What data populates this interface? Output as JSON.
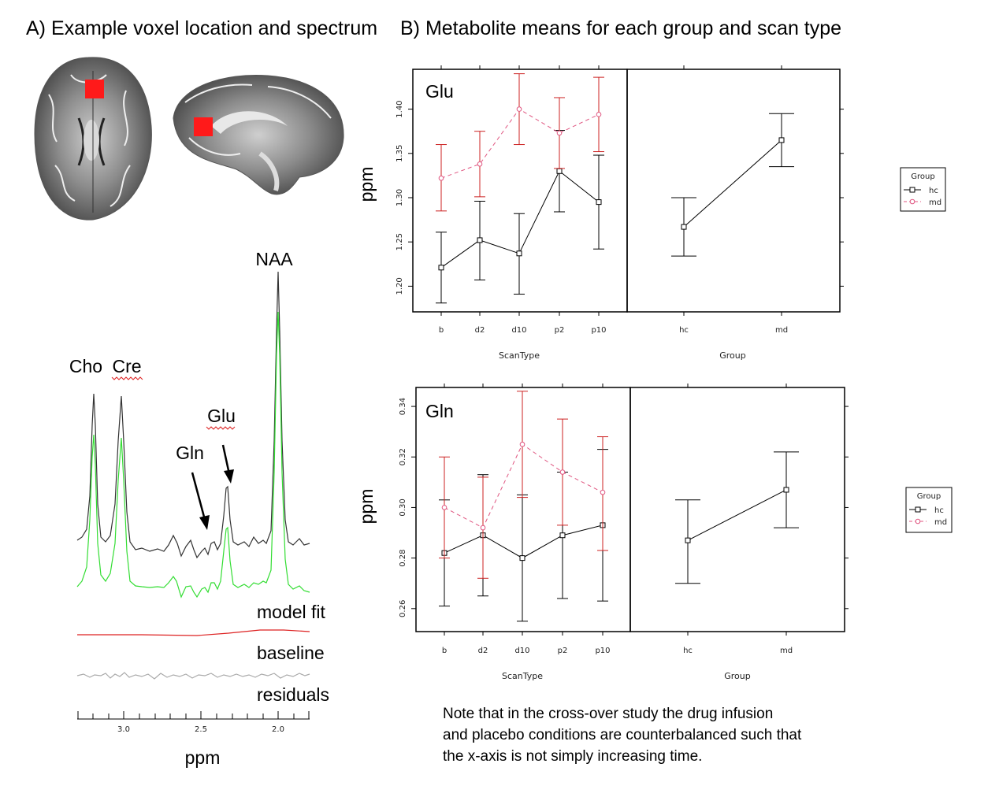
{
  "panel_a": {
    "title": "A) Example voxel location and spectrum",
    "peak_labels": {
      "naa": "NAA",
      "cho": "Cho",
      "cre": "Cre",
      "glu": "Glu",
      "gln": "Gln"
    },
    "trace_labels": {
      "model_fit": "model fit",
      "baseline": "baseline",
      "residuals": "residuals"
    },
    "xaxis": {
      "ticks": [
        "3.0",
        "2.5",
        "2.0"
      ],
      "label": "ppm"
    },
    "colors": {
      "data": "#333333",
      "fit": "#33dd33",
      "baseline": "#dd2222",
      "residuals": "#aaaaaa",
      "voxel": "#ff1a1a"
    }
  },
  "panel_b": {
    "title": "B) Metabolite means for each group and scan type",
    "note": [
      "Note that in the cross-over study the drug infusion",
      "and placebo conditions are counterbalanced such that",
      "the x-axis is not simply increasing time."
    ]
  },
  "chart_data": [
    {
      "type": "line",
      "title": "Glu",
      "xlabel": "ScanType",
      "ylabel": "ppm",
      "categories": [
        "b",
        "d2",
        "d10",
        "p2",
        "p10"
      ],
      "yticks": [
        "1.20",
        "1.25",
        "1.30",
        "1.35",
        "1.40"
      ],
      "ylim": [
        1.171,
        1.445
      ],
      "series": [
        {
          "name": "hc",
          "color": "#000000",
          "values": [
            1.221,
            1.252,
            1.237,
            1.33,
            1.295
          ],
          "lower": [
            1.181,
            1.207,
            1.191,
            1.284,
            1.242
          ],
          "upper": [
            1.261,
            1.296,
            1.282,
            1.376,
            1.348
          ]
        },
        {
          "name": "md",
          "color": "#cc2222",
          "values": [
            1.322,
            1.338,
            1.4,
            1.373,
            1.394
          ],
          "lower": [
            1.285,
            1.301,
            1.36,
            1.333,
            1.352
          ],
          "upper": [
            1.36,
            1.375,
            1.44,
            1.413,
            1.436
          ]
        }
      ],
      "group": {
        "xlabel": "Group",
        "categories": [
          "hc",
          "md"
        ],
        "values": [
          1.267,
          1.365
        ],
        "lower": [
          1.234,
          1.335
        ],
        "upper": [
          1.3,
          1.395
        ]
      },
      "legend": {
        "title": "Group",
        "entries": [
          "hc",
          "md"
        ]
      }
    },
    {
      "type": "line",
      "title": "Gln",
      "xlabel": "ScanType",
      "ylabel": "ppm",
      "categories": [
        "b",
        "d2",
        "d10",
        "p2",
        "p10"
      ],
      "yticks": [
        "0.26",
        "0.28",
        "0.30",
        "0.32",
        "0.34"
      ],
      "ylim": [
        0.2509,
        0.3475
      ],
      "series": [
        {
          "name": "hc",
          "color": "#000000",
          "values": [
            0.282,
            0.289,
            0.28,
            0.289,
            0.293
          ],
          "lower": [
            0.261,
            0.265,
            0.255,
            0.264,
            0.263
          ],
          "upper": [
            0.303,
            0.313,
            0.305,
            0.314,
            0.323
          ]
        },
        {
          "name": "md",
          "color": "#cc2222",
          "values": [
            0.3,
            0.292,
            0.325,
            0.314,
            0.306
          ],
          "lower": [
            0.28,
            0.272,
            0.304,
            0.293,
            0.283
          ],
          "upper": [
            0.32,
            0.312,
            0.346,
            0.335,
            0.328
          ]
        }
      ],
      "group": {
        "xlabel": "Group",
        "categories": [
          "hc",
          "md"
        ],
        "values": [
          0.287,
          0.307
        ],
        "lower": [
          0.27,
          0.292
        ],
        "upper": [
          0.303,
          0.322
        ]
      },
      "legend": {
        "title": "Group",
        "entries": [
          "hc",
          "md"
        ]
      }
    }
  ]
}
